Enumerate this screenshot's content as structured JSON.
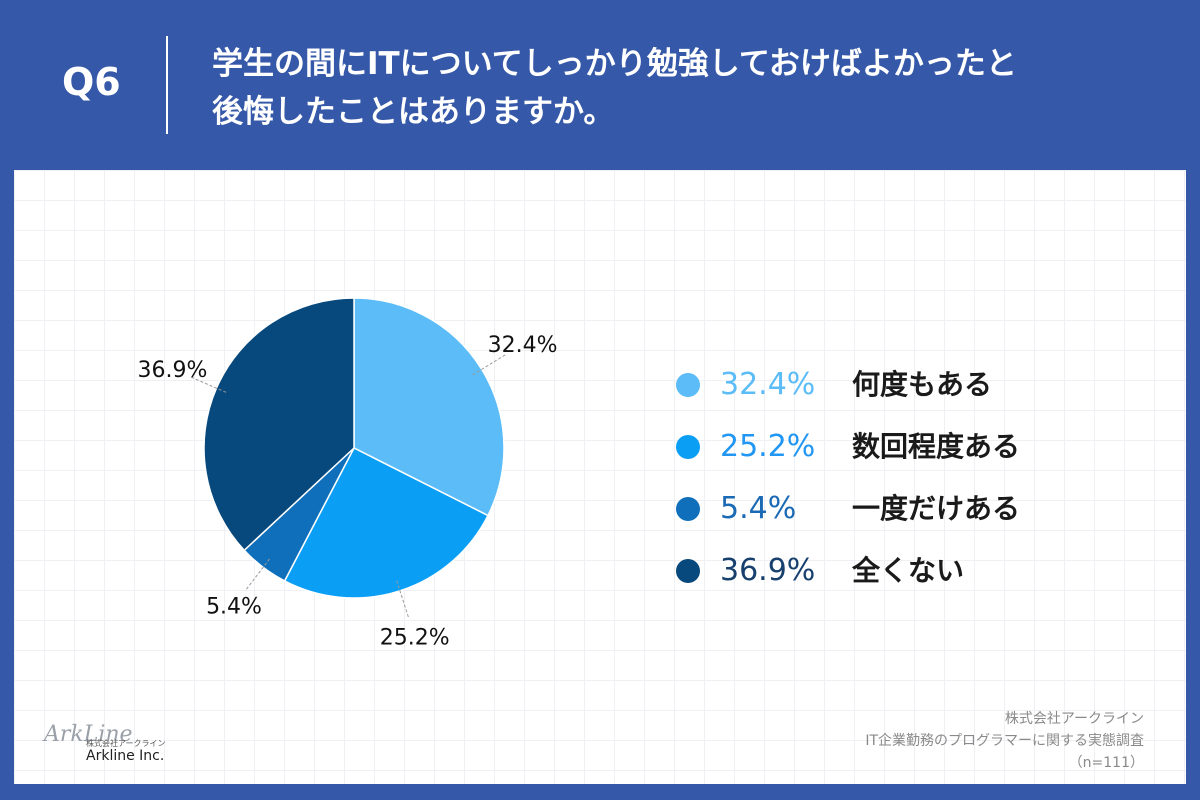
{
  "header": {
    "qnum": "Q6",
    "question_line1": "学生の間にITについてしっかり勉強しておけばよかったと",
    "question_line2": "後悔したことはありますか。"
  },
  "chart_data": {
    "type": "pie",
    "start": "12 o'clock, clockwise",
    "slices": [
      {
        "label": "何度もある",
        "value": 32.4,
        "pct_text": "32.4%",
        "color": "#5bbcf8"
      },
      {
        "label": "数回程度ある",
        "value": 25.2,
        "pct_text": "25.2%",
        "color": "#0a9ef5"
      },
      {
        "label": "一度だけある",
        "value": 5.4,
        "pct_text": "5.4%",
        "color": "#0f6fba"
      },
      {
        "label": "全くない",
        "value": 36.9,
        "pct_text": "36.9%",
        "color": "#07497c"
      }
    ],
    "legend_placement": "right",
    "legend_pct_colors": [
      "#5bbcf8",
      "#2196f3",
      "#1a69b4",
      "#17406e"
    ]
  },
  "footer": {
    "company": "株式会社アークライン",
    "survey": "IT企業勤務のプログラマーに関する実態調査",
    "n": "（n=111）"
  },
  "logo": {
    "mark": "ArkLine",
    "sub": "株式会社アークライン",
    "name": "Arkline Inc."
  }
}
